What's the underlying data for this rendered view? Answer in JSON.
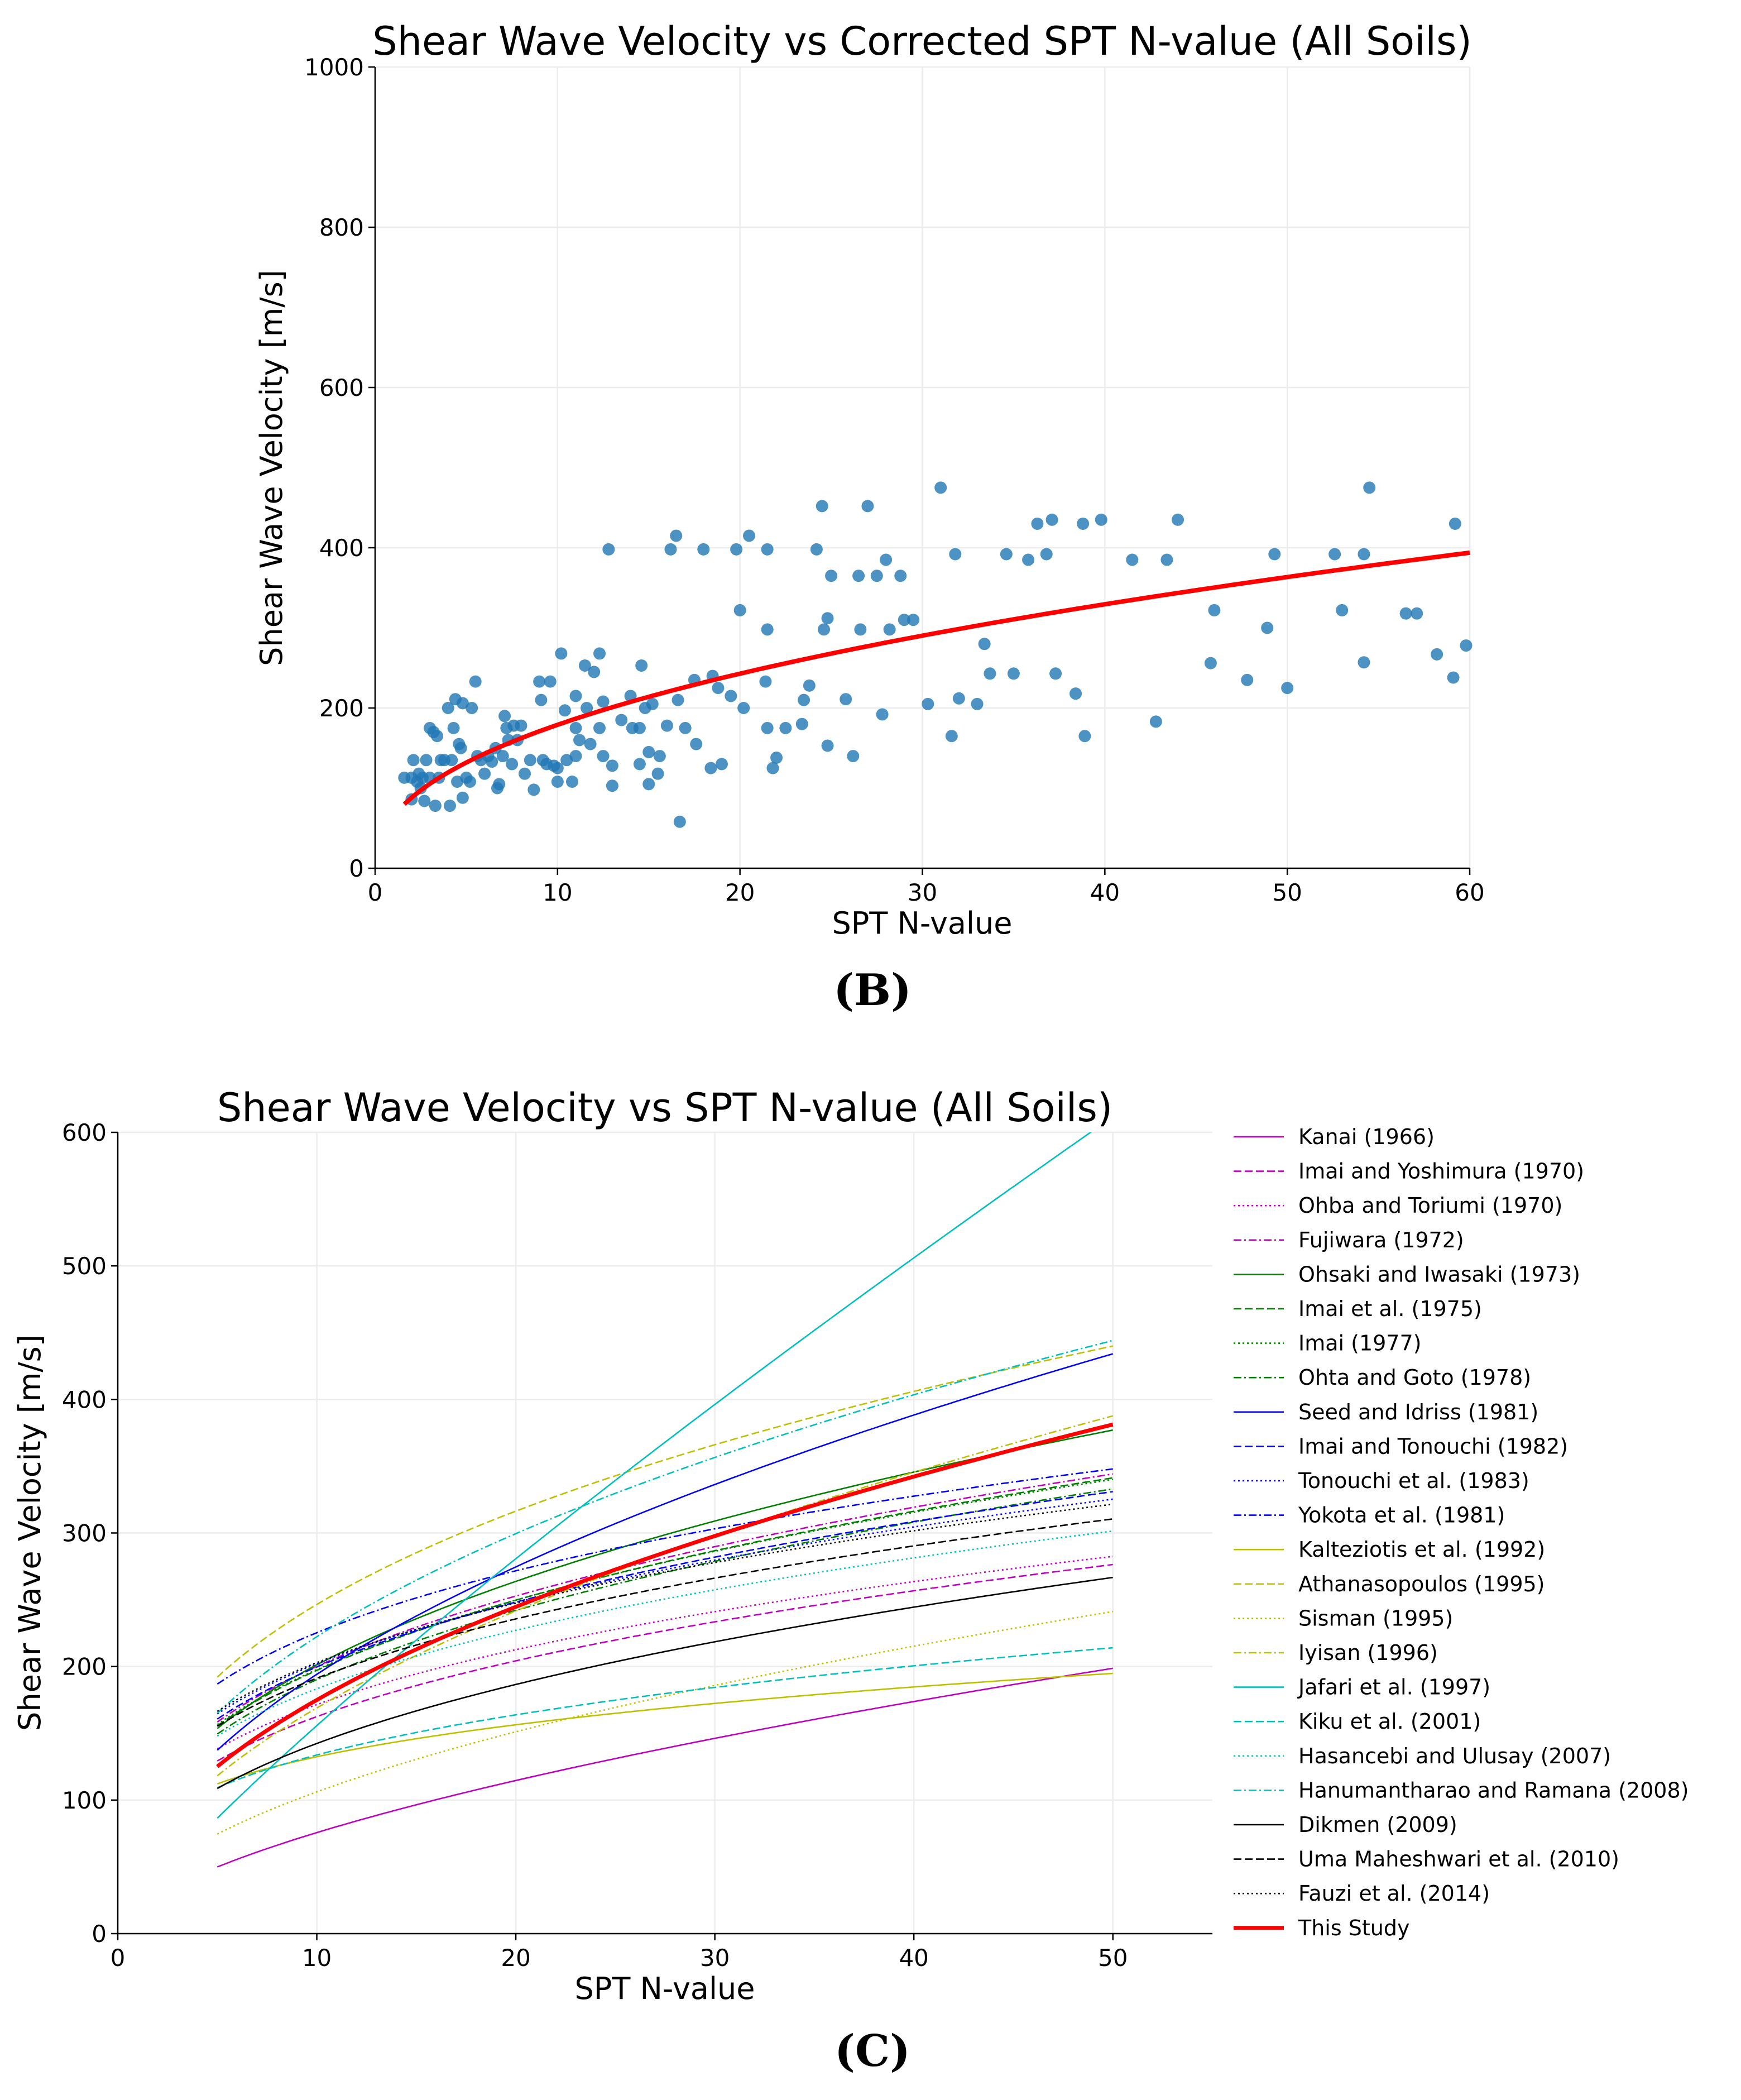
{
  "chart_data": [
    {
      "type": "scatter",
      "panel_label": "(B)",
      "title": "Shear Wave Velocity vs Corrected SPT N-value (All Soils)",
      "xlabel": "SPT N-value",
      "ylabel": "Shear Wave Velocity [m/s]",
      "xlim": [
        0,
        60
      ],
      "ylim": [
        0,
        1000
      ],
      "xticks": [
        0,
        10,
        20,
        30,
        40,
        50,
        60
      ],
      "yticks": [
        0,
        200,
        400,
        600,
        800,
        1000
      ],
      "grid": true,
      "point_color": "#1f77b4",
      "fit_color": "#ff0000",
      "fit": {
        "form": "V = a*N^b",
        "a": 65,
        "b": 0.44,
        "x_range": [
          1.6,
          60
        ]
      },
      "points": [
        [
          1.6,
          113
        ],
        [
          2,
          113
        ],
        [
          2,
          86
        ],
        [
          2.1,
          135
        ],
        [
          2.3,
          108
        ],
        [
          2.4,
          118
        ],
        [
          2.5,
          100
        ],
        [
          2.6,
          113
        ],
        [
          2.7,
          84
        ],
        [
          2.8,
          135
        ],
        [
          3,
          113
        ],
        [
          3,
          175
        ],
        [
          3.2,
          170
        ],
        [
          3.3,
          78
        ],
        [
          3.4,
          165
        ],
        [
          3.5,
          113
        ],
        [
          3.6,
          135
        ],
        [
          3.8,
          135
        ],
        [
          4,
          200
        ],
        [
          4.1,
          78
        ],
        [
          4.2,
          135
        ],
        [
          4.3,
          175
        ],
        [
          4.4,
          211
        ],
        [
          4.5,
          108
        ],
        [
          4.6,
          155
        ],
        [
          4.7,
          150
        ],
        [
          4.8,
          206
        ],
        [
          4.8,
          88
        ],
        [
          5,
          113
        ],
        [
          5.2,
          108
        ],
        [
          5.3,
          200
        ],
        [
          5.5,
          233
        ],
        [
          5.6,
          140
        ],
        [
          5.8,
          135
        ],
        [
          6,
          118
        ],
        [
          6.2,
          140
        ],
        [
          6.4,
          133
        ],
        [
          6.6,
          150
        ],
        [
          6.7,
          100
        ],
        [
          6.8,
          105
        ],
        [
          7,
          140
        ],
        [
          7.1,
          190
        ],
        [
          7.2,
          175
        ],
        [
          7.3,
          160
        ],
        [
          7.5,
          130
        ],
        [
          7.6,
          178
        ],
        [
          7.8,
          160
        ],
        [
          8,
          178
        ],
        [
          8.2,
          118
        ],
        [
          8.5,
          135
        ],
        [
          8.7,
          98
        ],
        [
          9,
          233
        ],
        [
          9.1,
          210
        ],
        [
          9.2,
          135
        ],
        [
          9.4,
          130
        ],
        [
          9.6,
          233
        ],
        [
          9.8,
          128
        ],
        [
          10,
          125
        ],
        [
          10,
          108
        ],
        [
          10.2,
          268
        ],
        [
          10.4,
          197
        ],
        [
          10.5,
          135
        ],
        [
          10.8,
          108
        ],
        [
          11,
          140
        ],
        [
          11,
          175
        ],
        [
          11,
          215
        ],
        [
          11.2,
          160
        ],
        [
          11.5,
          253
        ],
        [
          11.6,
          200
        ],
        [
          11.8,
          155
        ],
        [
          12,
          245
        ],
        [
          12.3,
          268
        ],
        [
          12.3,
          175
        ],
        [
          12.5,
          208
        ],
        [
          12.5,
          140
        ],
        [
          12.8,
          398
        ],
        [
          13,
          103
        ],
        [
          13,
          128
        ],
        [
          13.5,
          185
        ],
        [
          14,
          215
        ],
        [
          14.1,
          175
        ],
        [
          14.5,
          175
        ],
        [
          14.5,
          130
        ],
        [
          14.6,
          253
        ],
        [
          14.8,
          200
        ],
        [
          15,
          105
        ],
        [
          15,
          145
        ],
        [
          15.2,
          205
        ],
        [
          15.5,
          118
        ],
        [
          15.6,
          140
        ],
        [
          16,
          178
        ],
        [
          16.2,
          398
        ],
        [
          16.5,
          415
        ],
        [
          16.6,
          210
        ],
        [
          16.7,
          58
        ],
        [
          17,
          175
        ],
        [
          17.5,
          235
        ],
        [
          17.6,
          155
        ],
        [
          18,
          398
        ],
        [
          18.4,
          125
        ],
        [
          18.5,
          240
        ],
        [
          18.8,
          225
        ],
        [
          19,
          130
        ],
        [
          19.5,
          215
        ],
        [
          19.8,
          398
        ],
        [
          20,
          322
        ],
        [
          20.2,
          200
        ],
        [
          20.5,
          415
        ],
        [
          21.5,
          398
        ],
        [
          21.5,
          298
        ],
        [
          21.4,
          233
        ],
        [
          21.5,
          175
        ],
        [
          21.8,
          125
        ],
        [
          22,
          138
        ],
        [
          22.5,
          175
        ],
        [
          23.4,
          180
        ],
        [
          23.5,
          210
        ],
        [
          23.8,
          228
        ],
        [
          24.2,
          398
        ],
        [
          24.5,
          452
        ],
        [
          24.6,
          298
        ],
        [
          24.8,
          312
        ],
        [
          25,
          365
        ],
        [
          24.8,
          153
        ],
        [
          25.8,
          211
        ],
        [
          26.2,
          140
        ],
        [
          26.5,
          365
        ],
        [
          26.6,
          298
        ],
        [
          27,
          452
        ],
        [
          27.5,
          365
        ],
        [
          27.8,
          192
        ],
        [
          28,
          385
        ],
        [
          28.2,
          298
        ],
        [
          28.8,
          365
        ],
        [
          29,
          310
        ],
        [
          29.5,
          310
        ],
        [
          30.3,
          205
        ],
        [
          31,
          475
        ],
        [
          31.6,
          165
        ],
        [
          31.8,
          392
        ],
        [
          32,
          212
        ],
        [
          33,
          205
        ],
        [
          33.4,
          280
        ],
        [
          33.7,
          243
        ],
        [
          34.6,
          392
        ],
        [
          35,
          243
        ],
        [
          35.8,
          385
        ],
        [
          36.3,
          430
        ],
        [
          36.8,
          392
        ],
        [
          37.1,
          435
        ],
        [
          37.3,
          243
        ],
        [
          38.4,
          218
        ],
        [
          38.8,
          430
        ],
        [
          38.9,
          165
        ],
        [
          39.8,
          435
        ],
        [
          41.5,
          385
        ],
        [
          42.8,
          183
        ],
        [
          43.4,
          385
        ],
        [
          44,
          435
        ],
        [
          45.8,
          256
        ],
        [
          46,
          322
        ],
        [
          47.8,
          235
        ],
        [
          48.9,
          300
        ],
        [
          49.3,
          392
        ],
        [
          50,
          225
        ],
        [
          52.6,
          392
        ],
        [
          53,
          322
        ],
        [
          54.2,
          392
        ],
        [
          54.2,
          257
        ],
        [
          54.5,
          475
        ],
        [
          56.5,
          318
        ],
        [
          57.1,
          318
        ],
        [
          58.2,
          267
        ],
        [
          59.1,
          238
        ],
        [
          59.2,
          430
        ],
        [
          59.8,
          278
        ]
      ]
    },
    {
      "type": "line",
      "panel_label": "(C)",
      "title": "Shear Wave Velocity vs SPT N-value (All Soils)",
      "xlabel": "SPT N-value",
      "ylabel": "Shear Wave Velocity [m/s]",
      "xlim": [
        0,
        55
      ],
      "ylim": [
        0,
        600
      ],
      "xticks": [
        0,
        10,
        20,
        30,
        40,
        50
      ],
      "yticks": [
        0,
        100,
        200,
        300,
        400,
        500,
        600
      ],
      "grid": true,
      "legend_position": "outside-right",
      "x_range": [
        5,
        50
      ],
      "series": [
        {
          "name": "Kanai (1966)",
          "a": 19,
          "b": 0.6,
          "color": "#bf00bf",
          "style": "solid"
        },
        {
          "name": "Imai and Yoshimura (1970)",
          "a": 76,
          "b": 0.33,
          "color": "#bf00bf",
          "style": "dashed"
        },
        {
          "name": "Ohba and Toriumi (1970)",
          "a": 84,
          "b": 0.31,
          "color": "#bf00bf",
          "style": "dotted"
        },
        {
          "name": "Fujiwara (1972)",
          "a": 92.1,
          "b": 0.337,
          "color": "#bf00bf",
          "style": "dashdot"
        },
        {
          "name": "Ohsaki and Iwasaki (1973)",
          "a": 82,
          "b": 0.39,
          "color": "#008000",
          "style": "solid"
        },
        {
          "name": "Imai et al. (1975)",
          "a": 89.9,
          "b": 0.341,
          "color": "#008000",
          "style": "dashed"
        },
        {
          "name": "Imai (1977)",
          "a": 91,
          "b": 0.337,
          "color": "#008000",
          "style": "dotted"
        },
        {
          "name": "Ohta and Goto (1978)",
          "a": 85.35,
          "b": 0.348,
          "color": "#008000",
          "style": "dashdot"
        },
        {
          "name": "Seed and Idriss (1981)",
          "a": 61.4,
          "b": 0.5,
          "color": "#0000ff",
          "style": "solid"
        },
        {
          "name": "Imai and Tonouchi (1982)",
          "a": 96.9,
          "b": 0.314,
          "color": "#0000ff",
          "style": "dashed"
        },
        {
          "name": "Tonouchi et al. (1983)",
          "a": 102.2,
          "b": 0.296,
          "color": "#0000ff",
          "style": "dotted"
        },
        {
          "name": "Yokota et al. (1981)",
          "a": 121,
          "b": 0.27,
          "color": "#0000ff",
          "style": "dashdot"
        },
        {
          "name": "Kalteziotis et al. (1992)",
          "a": 76.2,
          "b": 0.24,
          "color": "#bfbf00",
          "style": "solid"
        },
        {
          "name": "Athanasopoulos (1995)",
          "a": 107.6,
          "b": 0.36,
          "color": "#bfbf00",
          "style": "dashed"
        },
        {
          "name": "Sisman (1995)",
          "a": 32.8,
          "b": 0.51,
          "color": "#bfbf00",
          "style": "dotted"
        },
        {
          "name": "Iyisan (1996)",
          "a": 51.5,
          "b": 0.516,
          "color": "#bfbf00",
          "style": "dashdot"
        },
        {
          "name": "Jafari et al. (1997)",
          "a": 22,
          "b": 0.85,
          "color": "#00bfbf",
          "style": "solid"
        },
        {
          "name": "Kiku et al. (2001)",
          "a": 68.3,
          "b": 0.292,
          "color": "#00bfbf",
          "style": "dashed"
        },
        {
          "name": "Hasancebi and Ulusay (2007)",
          "a": 90,
          "b": 0.309,
          "color": "#00bfbf",
          "style": "dotted"
        },
        {
          "name": "Hanumantharao and Ramana (2008)",
          "a": 82.6,
          "b": 0.43,
          "color": "#00bfbf",
          "style": "dashdot"
        },
        {
          "name": "Dikmen (2009)",
          "a": 58,
          "b": 0.39,
          "color": "#000000",
          "style": "solid"
        },
        {
          "name": "Uma Maheshwari et al. (2010)",
          "a": 95.64,
          "b": 0.301,
          "color": "#000000",
          "style": "dashed"
        },
        {
          "name": "Fauzi et al. (2014)",
          "a": 105.03,
          "b": 0.286,
          "color": "#000000",
          "style": "dotted"
        },
        {
          "name": "This Study",
          "a": 57.4,
          "b": 0.484,
          "color": "#ff0000",
          "style": "solid",
          "bold": true
        }
      ]
    }
  ]
}
